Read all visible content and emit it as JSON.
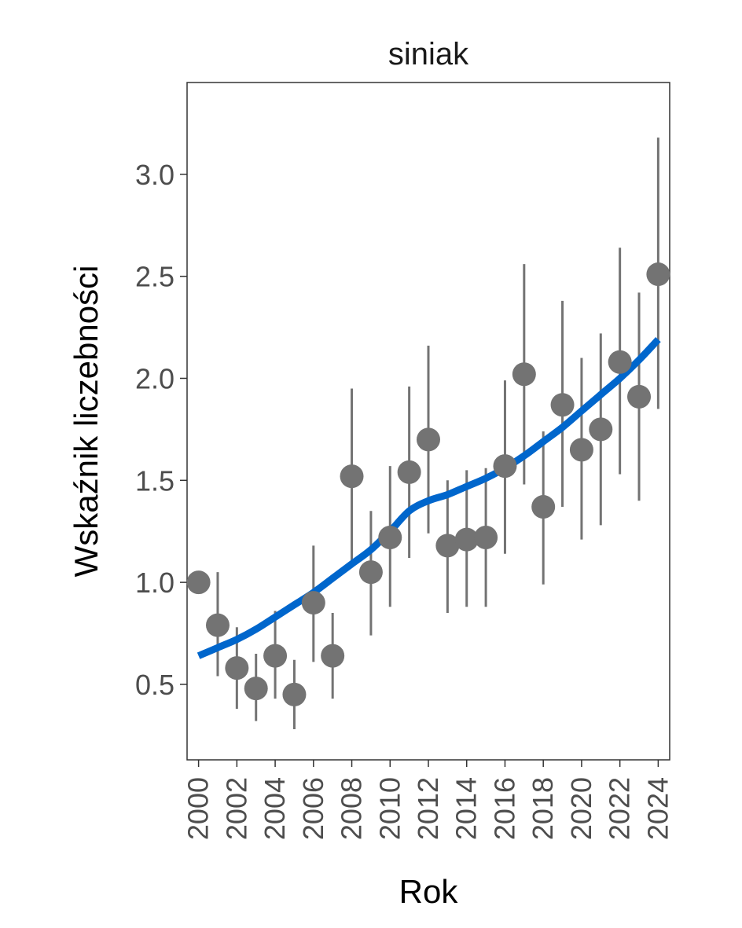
{
  "chart_data": {
    "type": "scatter",
    "title": "siniak",
    "xlabel": "Rok",
    "ylabel": "Wskaźnik liczebności",
    "xlim": [
      1999.4,
      2024.6
    ],
    "ylim": [
      0.13,
      3.45
    ],
    "x_ticks": [
      2000,
      2002,
      2004,
      2006,
      2008,
      2010,
      2012,
      2014,
      2016,
      2018,
      2020,
      2022,
      2024
    ],
    "x_tick_labels": [
      "2000",
      "2002",
      "2004",
      "2006",
      "2008",
      "2010",
      "2012",
      "2014",
      "2016",
      "2018",
      "2020",
      "2022",
      "2024"
    ],
    "y_ticks": [
      0.5,
      1.0,
      1.5,
      2.0,
      2.5,
      3.0
    ],
    "y_tick_labels": [
      "0.5",
      "1.0",
      "1.5",
      "2.0",
      "2.5",
      "3.0"
    ],
    "grid": false,
    "colors": {
      "points": "#737373",
      "trend": "#0066cc",
      "axis": "#333333"
    },
    "series": [
      {
        "kind": "points-with-error-bars",
        "points": [
          {
            "x": 2000,
            "y": 1.0,
            "lo": null,
            "hi": null
          },
          {
            "x": 2001,
            "y": 0.79,
            "lo": 0.54,
            "hi": 1.05
          },
          {
            "x": 2002,
            "y": 0.58,
            "lo": 0.38,
            "hi": 0.78
          },
          {
            "x": 2003,
            "y": 0.48,
            "lo": 0.32,
            "hi": 0.65
          },
          {
            "x": 2004,
            "y": 0.64,
            "lo": 0.43,
            "hi": 0.86
          },
          {
            "x": 2005,
            "y": 0.45,
            "lo": 0.28,
            "hi": 0.62
          },
          {
            "x": 2006,
            "y": 0.9,
            "lo": 0.61,
            "hi": 1.18
          },
          {
            "x": 2007,
            "y": 0.64,
            "lo": 0.43,
            "hi": 0.85
          },
          {
            "x": 2008,
            "y": 1.52,
            "lo": 1.1,
            "hi": 1.95
          },
          {
            "x": 2009,
            "y": 1.05,
            "lo": 0.74,
            "hi": 1.35
          },
          {
            "x": 2010,
            "y": 1.22,
            "lo": 0.88,
            "hi": 1.57
          },
          {
            "x": 2011,
            "y": 1.54,
            "lo": 1.12,
            "hi": 1.96
          },
          {
            "x": 2012,
            "y": 1.7,
            "lo": 1.24,
            "hi": 2.16
          },
          {
            "x": 2013,
            "y": 1.18,
            "lo": 0.85,
            "hi": 1.5
          },
          {
            "x": 2014,
            "y": 1.21,
            "lo": 0.88,
            "hi": 1.55
          },
          {
            "x": 2015,
            "y": 1.22,
            "lo": 0.88,
            "hi": 1.56
          },
          {
            "x": 2016,
            "y": 1.57,
            "lo": 1.14,
            "hi": 1.99
          },
          {
            "x": 2017,
            "y": 2.02,
            "lo": 1.48,
            "hi": 2.56
          },
          {
            "x": 2018,
            "y": 1.37,
            "lo": 0.99,
            "hi": 1.74
          },
          {
            "x": 2019,
            "y": 1.87,
            "lo": 1.37,
            "hi": 2.38
          },
          {
            "x": 2020,
            "y": 1.65,
            "lo": 1.21,
            "hi": 2.1
          },
          {
            "x": 2021,
            "y": 1.75,
            "lo": 1.28,
            "hi": 2.22
          },
          {
            "x": 2022,
            "y": 2.08,
            "lo": 1.53,
            "hi": 2.64
          },
          {
            "x": 2023,
            "y": 1.91,
            "lo": 1.4,
            "hi": 2.42
          },
          {
            "x": 2024,
            "y": 2.51,
            "lo": 1.85,
            "hi": 3.18
          }
        ]
      },
      {
        "kind": "trend-line",
        "points": [
          {
            "x": 2000,
            "y": 0.64
          },
          {
            "x": 2001,
            "y": 0.68
          },
          {
            "x": 2002,
            "y": 0.72
          },
          {
            "x": 2003,
            "y": 0.77
          },
          {
            "x": 2004,
            "y": 0.83
          },
          {
            "x": 2005,
            "y": 0.89
          },
          {
            "x": 2006,
            "y": 0.95
          },
          {
            "x": 2007,
            "y": 1.02
          },
          {
            "x": 2008,
            "y": 1.09
          },
          {
            "x": 2009,
            "y": 1.16
          },
          {
            "x": 2010,
            "y": 1.25
          },
          {
            "x": 2011,
            "y": 1.35
          },
          {
            "x": 2012,
            "y": 1.4
          },
          {
            "x": 2013,
            "y": 1.43
          },
          {
            "x": 2014,
            "y": 1.47
          },
          {
            "x": 2015,
            "y": 1.51
          },
          {
            "x": 2016,
            "y": 1.56
          },
          {
            "x": 2017,
            "y": 1.62
          },
          {
            "x": 2018,
            "y": 1.69
          },
          {
            "x": 2019,
            "y": 1.76
          },
          {
            "x": 2020,
            "y": 1.84
          },
          {
            "x": 2021,
            "y": 1.92
          },
          {
            "x": 2022,
            "y": 2.0
          },
          {
            "x": 2023,
            "y": 2.09
          },
          {
            "x": 2024,
            "y": 2.19
          }
        ]
      }
    ]
  }
}
